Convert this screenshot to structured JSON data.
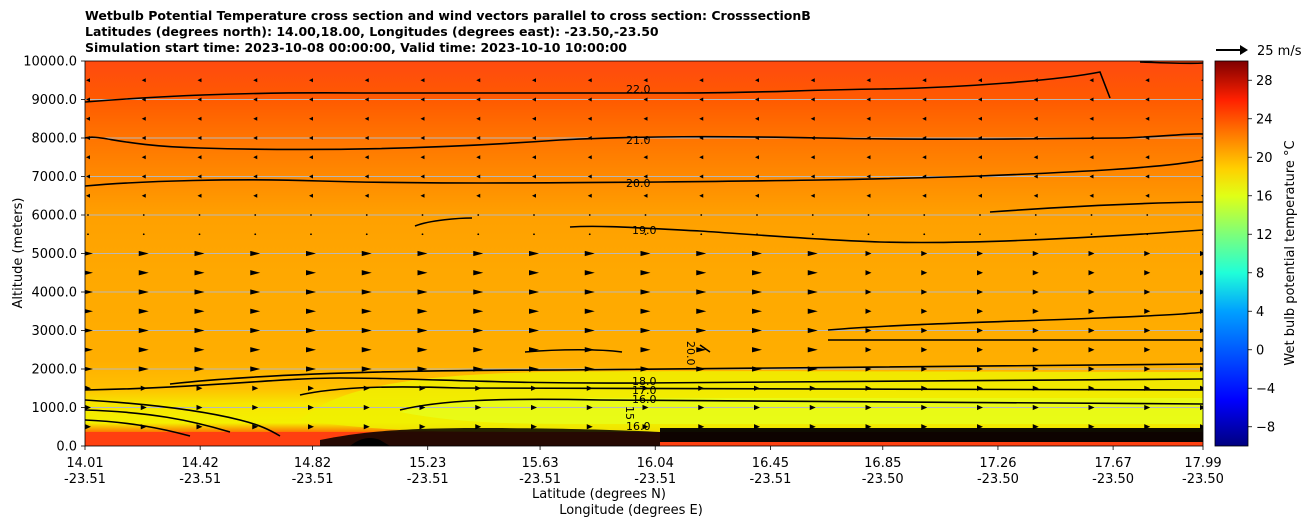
{
  "chart_data": {
    "type": "heatmap",
    "title_lines": [
      "Wetbulb Potential Temperature cross section and wind vectors parallel to cross section: CrosssectionB",
      "Latitudes (degrees north): 14.00,18.00, Longitudes (degrees east): -23.50,-23.50",
      "Simulation start time: 2023-10-08 00:00:00, Valid time: 2023-10-10 10:00:00"
    ],
    "ylabel": "Altitude (meters)",
    "xlabel_lat": "Latitude (degrees N)",
    "xlabel_lon": "Longitude (degrees E)",
    "ylim": [
      0,
      10000
    ],
    "y_ticks": [
      "0.0",
      "1000.0",
      "2000.0",
      "3000.0",
      "4000.0",
      "5000.0",
      "6000.0",
      "7000.0",
      "8000.0",
      "9000.0",
      "10000.0"
    ],
    "x_ticks": [
      {
        "lat": "14.01",
        "lon": "-23.51"
      },
      {
        "lat": "14.42",
        "lon": "-23.51"
      },
      {
        "lat": "14.82",
        "lon": "-23.51"
      },
      {
        "lat": "15.23",
        "lon": "-23.51"
      },
      {
        "lat": "15.63",
        "lon": "-23.51"
      },
      {
        "lat": "16.04",
        "lon": "-23.51"
      },
      {
        "lat": "16.45",
        "lon": "-23.51"
      },
      {
        "lat": "16.85",
        "lon": "-23.50"
      },
      {
        "lat": "17.26",
        "lon": "-23.50"
      },
      {
        "lat": "17.67",
        "lon": "-23.50"
      },
      {
        "lat": "17.99",
        "lon": "-23.50"
      }
    ],
    "colorbar": {
      "label": "Wet bulb potential temperature $^\\circ$C",
      "label_display": "Wet bulb potential temperature °C",
      "range": [
        -10,
        30
      ],
      "ticks": [
        "−8",
        "−4",
        "0",
        "4",
        "8",
        "12",
        "16",
        "20",
        "24",
        "28"
      ]
    },
    "wind_key_label": "25 m/s",
    "contour_levels": [
      {
        "label": "22.0",
        "altitude": 9000
      },
      {
        "label": "21.0",
        "altitude": 8000
      },
      {
        "label": "20.0",
        "altitude": 6800
      },
      {
        "label": "19.0",
        "altitude": 5500
      },
      {
        "label": "18.0",
        "altitude": 1700
      },
      {
        "label": "17.0",
        "altitude": 1450
      },
      {
        "label": "16.0",
        "altitude": 1200
      },
      {
        "label": "15",
        "altitude": 900
      },
      {
        "label": "16.0",
        "altitude": 550
      },
      {
        "label": "20.0",
        "altitude": 2200
      }
    ],
    "profile": [
      {
        "altitude": 0,
        "value": 24
      },
      {
        "altitude": 300,
        "value": 22
      },
      {
        "altitude": 700,
        "value": 17
      },
      {
        "altitude": 1200,
        "value": 16
      },
      {
        "altitude": 1800,
        "value": 18
      },
      {
        "altitude": 2500,
        "value": 19
      },
      {
        "altitude": 4000,
        "value": 19
      },
      {
        "altitude": 5500,
        "value": 19
      },
      {
        "altitude": 6800,
        "value": 20
      },
      {
        "altitude": 8000,
        "value": 21
      },
      {
        "altitude": 9000,
        "value": 22
      },
      {
        "altitude": 10000,
        "value": 23
      }
    ]
  }
}
